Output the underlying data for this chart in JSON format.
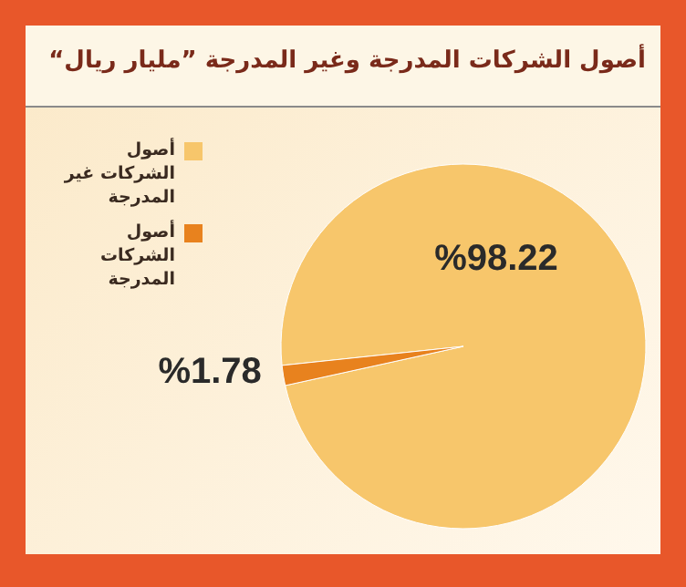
{
  "chart_data": {
    "type": "pie",
    "title": "أصول الشركات المدرجة وغير المدرجة ”مليار ريال“",
    "categories": [
      "أصول الشركات غير المدرجة",
      "أصول الشركات المدرجة"
    ],
    "values": [
      98.22,
      1.78
    ],
    "colors": [
      "#f7c66b",
      "#e8821e"
    ],
    "value_labels": [
      "%98.22",
      "%1.78"
    ],
    "legend": "top left"
  }
}
